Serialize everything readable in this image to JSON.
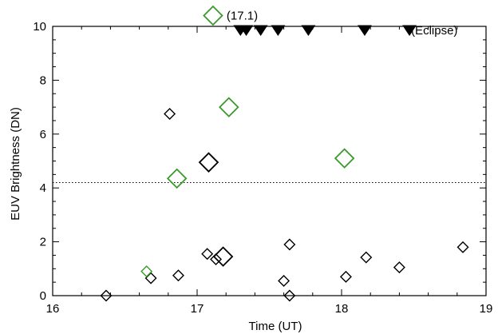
{
  "chart_data": {
    "type": "scatter",
    "title": "",
    "xlabel": "Time (UT)",
    "ylabel": "EUV Brightness (DN)",
    "xlim": [
      16,
      19
    ],
    "ylim": [
      0,
      10
    ],
    "x_ticks": [
      "16",
      "17",
      "18",
      "19"
    ],
    "y_ticks": [
      "0",
      "2",
      "4",
      "6",
      "8",
      "10"
    ],
    "grid": false,
    "reference_line": {
      "y": 4.2,
      "style": "dotted"
    },
    "colors": {
      "black_series": "#000000",
      "green_series": "#3a9a2a"
    },
    "series": [
      {
        "color": "#000000",
        "marker": "diamond-open",
        "points": [
          {
            "x": 16.37,
            "y": 0.0,
            "size": "small"
          },
          {
            "x": 16.68,
            "y": 0.65,
            "size": "small"
          },
          {
            "x": 16.81,
            "y": 6.75,
            "size": "small"
          },
          {
            "x": 16.87,
            "y": 0.75,
            "size": "small"
          },
          {
            "x": 17.07,
            "y": 1.55,
            "size": "small"
          },
          {
            "x": 17.08,
            "y": 4.95,
            "size": "large"
          },
          {
            "x": 17.13,
            "y": 1.35,
            "size": "small"
          },
          {
            "x": 17.18,
            "y": 1.45,
            "size": "large"
          },
          {
            "x": 17.6,
            "y": 0.55,
            "size": "small"
          },
          {
            "x": 17.64,
            "y": 1.9,
            "size": "small"
          },
          {
            "x": 17.64,
            "y": 0.0,
            "size": "small"
          },
          {
            "x": 18.03,
            "y": 0.7,
            "size": "small"
          },
          {
            "x": 18.17,
            "y": 1.42,
            "size": "small"
          },
          {
            "x": 18.4,
            "y": 1.05,
            "size": "small"
          },
          {
            "x": 18.84,
            "y": 1.8,
            "size": "small"
          }
        ]
      },
      {
        "name": "(17.1)",
        "color": "#3a9a2a",
        "marker": "diamond-open",
        "points": [
          {
            "x": 16.65,
            "y": 0.9,
            "size": "small"
          },
          {
            "x": 16.86,
            "y": 4.35,
            "size": "large"
          },
          {
            "x": 17.11,
            "y": 10.4,
            "size": "large"
          },
          {
            "x": 17.22,
            "y": 7.0,
            "size": "large"
          },
          {
            "x": 18.02,
            "y": 5.1,
            "size": "large"
          }
        ]
      },
      {
        "name": "(Eclipse)",
        "color": "#000000",
        "marker": "triangle-down-filled",
        "points": [
          {
            "x": 17.3,
            "y": 9.85
          },
          {
            "x": 17.34,
            "y": 9.85
          },
          {
            "x": 17.44,
            "y": 9.85
          },
          {
            "x": 17.56,
            "y": 9.85
          },
          {
            "x": 17.77,
            "y": 9.85
          },
          {
            "x": 18.16,
            "y": 9.85
          },
          {
            "x": 18.47,
            "y": 9.85
          }
        ]
      }
    ],
    "annotations": [
      "(17.1)",
      "(Eclipse)"
    ]
  }
}
